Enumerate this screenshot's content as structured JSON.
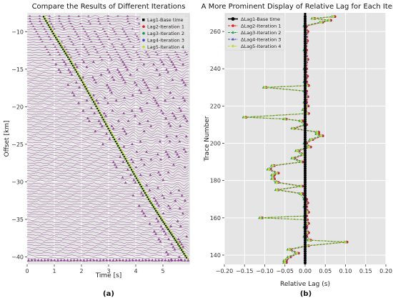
{
  "figure": {
    "caption_a": "(a)",
    "caption_b": "(b)"
  },
  "chart_data": [
    {
      "type": "scatter",
      "title": "Compare the Results of Different Iterations",
      "xlabel": "Time [s]",
      "ylabel": "Offset [km]",
      "xlim": [
        0,
        6
      ],
      "ylim": [
        -41,
        -7.5
      ],
      "xticks": [
        0,
        1,
        2,
        3,
        4,
        5
      ],
      "yticks": [
        -10,
        -15,
        -20,
        -25,
        -30,
        -35,
        -40
      ],
      "grid": true,
      "legend_position": "top-right",
      "background": "seismic-wiggle-traces",
      "wiggle_color": "#7b2e7e",
      "series": [
        {
          "name": "Lag1-Base time",
          "color": "#000000",
          "marker": "square"
        },
        {
          "name": "Lag2-Iteration 1",
          "color": "#e41a1c",
          "marker": "dot"
        },
        {
          "name": "Lag3-Iteration 2",
          "color": "#1a9850",
          "marker": "dot"
        },
        {
          "name": "Lag4-Iteration 3",
          "color": "#3b4cc0",
          "marker": "dot"
        },
        {
          "name": "Lag5-Iteration 4",
          "color": "#c5d834",
          "marker": "dot"
        }
      ],
      "picks": {
        "x": [
          0.6,
          1.0,
          1.5,
          2.0,
          2.5,
          3.0,
          3.5,
          4.0,
          4.5,
          5.0,
          5.5,
          5.9
        ],
        "y": [
          -8.0,
          -10.5,
          -13.4,
          -16.5,
          -19.7,
          -23.0,
          -26.2,
          -29.4,
          -32.5,
          -35.3,
          -38.0,
          -40.3
        ]
      }
    },
    {
      "type": "line",
      "title": "A More Prominent Display of Relative Lag for Each Iteration",
      "xlabel": "Relative Lag (s)",
      "ylabel": "Trace Number",
      "xlim": [
        -0.2,
        0.2
      ],
      "ylim": [
        135,
        270
      ],
      "xticks": [
        -0.2,
        -0.15,
        -0.1,
        -0.05,
        0.0,
        0.05,
        0.1,
        0.15,
        0.2
      ],
      "xtick_labels": [
        "−0.20",
        "−0.15",
        "−0.10",
        "−0.05",
        "0.00",
        "0.05",
        "0.10",
        "0.15",
        "0.20"
      ],
      "yticks": [
        140,
        160,
        180,
        200,
        220,
        240,
        260
      ],
      "grid": true,
      "legend_position": "top-left",
      "series": [
        {
          "name": "ΔLag1-Base time",
          "color": "#000000",
          "marker": "circle",
          "style": "solid"
        },
        {
          "name": "ΔLag2-Iteration 1",
          "color": "#e41a1c",
          "marker": "circle",
          "style": "dashed"
        },
        {
          "name": "ΔLag3-Iteration 2",
          "color": "#1a9850",
          "marker": "triangle",
          "style": "dashed"
        },
        {
          "name": "ΔLag4-Iteration 3",
          "color": "#3b4cc0",
          "marker": "triangle",
          "style": "dashed"
        },
        {
          "name": "ΔLag5-Iteration 4",
          "color": "#c5d834",
          "marker": "diamond",
          "style": "dashed"
        }
      ],
      "traces": [
        136,
        137,
        139,
        141,
        143,
        145,
        147,
        148,
        150,
        152,
        155,
        157,
        159,
        160,
        161,
        163,
        166,
        168,
        170,
        173,
        175,
        177,
        179,
        181,
        183,
        184,
        186,
        188,
        190,
        192,
        194,
        196,
        198,
        200,
        202,
        204,
        205,
        206,
        208,
        210,
        212,
        213,
        214,
        216,
        218,
        220,
        222,
        225,
        228,
        230,
        231,
        233,
        236,
        240,
        245,
        250,
        255,
        260,
        263,
        265,
        266,
        267,
        268
      ],
      "lag_iteration": [
        -0.05,
        -0.05,
        -0.04,
        -0.02,
        -0.04,
        0.005,
        0.1,
        0.01,
        0.0,
        0.005,
        0.0,
        0.005,
        0.002,
        -0.11,
        0.0,
        0.005,
        0.0,
        0.003,
        0.0,
        -0.01,
        -0.07,
        -0.01,
        -0.07,
        -0.08,
        -0.08,
        -0.07,
        -0.09,
        -0.08,
        -0.01,
        -0.03,
        -0.005,
        -0.02,
        0.01,
        0.0,
        0.015,
        0.04,
        0.03,
        0.03,
        -0.03,
        0.0,
        -0.01,
        -0.05,
        -0.15,
        0.005,
        -0.003,
        0.004,
        0.0,
        0.003,
        0.0,
        -0.1,
        0.005,
        0.0,
        0.002,
        0.0,
        0.003,
        0.0,
        0.002,
        0.003,
        0.0,
        0.04,
        0.06,
        0.02,
        0.07
      ]
    }
  ]
}
